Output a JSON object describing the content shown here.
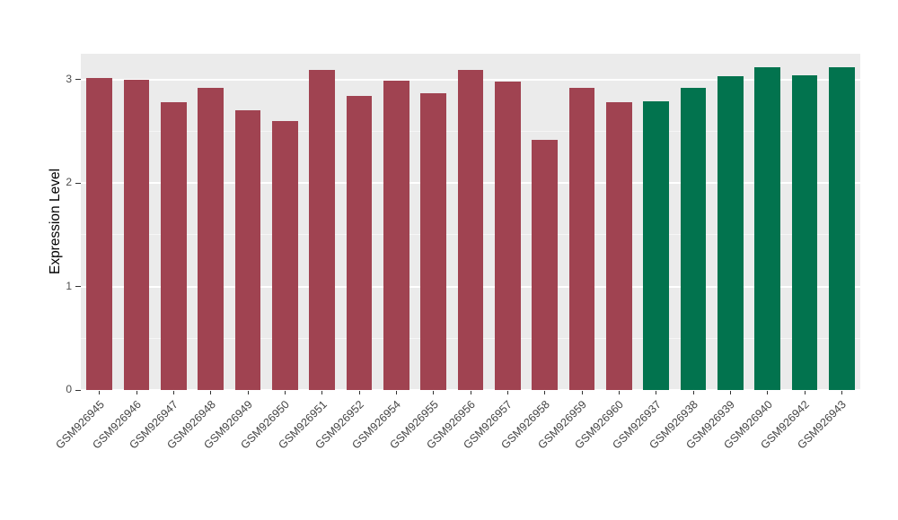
{
  "chart_data": {
    "type": "bar",
    "title": "",
    "xlabel": "",
    "ylabel": "Expression Level",
    "ylim": [
      0,
      3.25
    ],
    "yticks": [
      0,
      1,
      2,
      3
    ],
    "grid": "white major and minor horizontal gridlines on grey panel",
    "legend_position": "none",
    "panel_background": "#EBEBEB",
    "grid_color": "#FFFFFF",
    "group_colors": {
      "group1": "#A04351",
      "group2": "#02734E"
    },
    "bars": [
      {
        "label": "GSM926945",
        "value": 3.02,
        "color": "#A04351"
      },
      {
        "label": "GSM926946",
        "value": 3.0,
        "color": "#A04351"
      },
      {
        "label": "GSM926947",
        "value": 2.78,
        "color": "#A04351"
      },
      {
        "label": "GSM926948",
        "value": 2.92,
        "color": "#A04351"
      },
      {
        "label": "GSM926949",
        "value": 2.7,
        "color": "#A04351"
      },
      {
        "label": "GSM926950",
        "value": 2.6,
        "color": "#A04351"
      },
      {
        "label": "GSM926951",
        "value": 3.09,
        "color": "#A04351"
      },
      {
        "label": "GSM926952",
        "value": 2.84,
        "color": "#A04351"
      },
      {
        "label": "GSM926954",
        "value": 2.99,
        "color": "#A04351"
      },
      {
        "label": "GSM926955",
        "value": 2.87,
        "color": "#A04351"
      },
      {
        "label": "GSM926956",
        "value": 3.09,
        "color": "#A04351"
      },
      {
        "label": "GSM926957",
        "value": 2.98,
        "color": "#A04351"
      },
      {
        "label": "GSM926958",
        "value": 2.42,
        "color": "#A04351"
      },
      {
        "label": "GSM926959",
        "value": 2.92,
        "color": "#A04351"
      },
      {
        "label": "GSM926960",
        "value": 2.78,
        "color": "#A04351"
      },
      {
        "label": "GSM926937",
        "value": 2.79,
        "color": "#02734E"
      },
      {
        "label": "GSM926938",
        "value": 2.92,
        "color": "#02734E"
      },
      {
        "label": "GSM926939",
        "value": 3.03,
        "color": "#02734E"
      },
      {
        "label": "GSM926940",
        "value": 3.12,
        "color": "#02734E"
      },
      {
        "label": "GSM926942",
        "value": 3.04,
        "color": "#02734E"
      },
      {
        "label": "GSM926943",
        "value": 3.12,
        "color": "#02734E"
      }
    ]
  }
}
